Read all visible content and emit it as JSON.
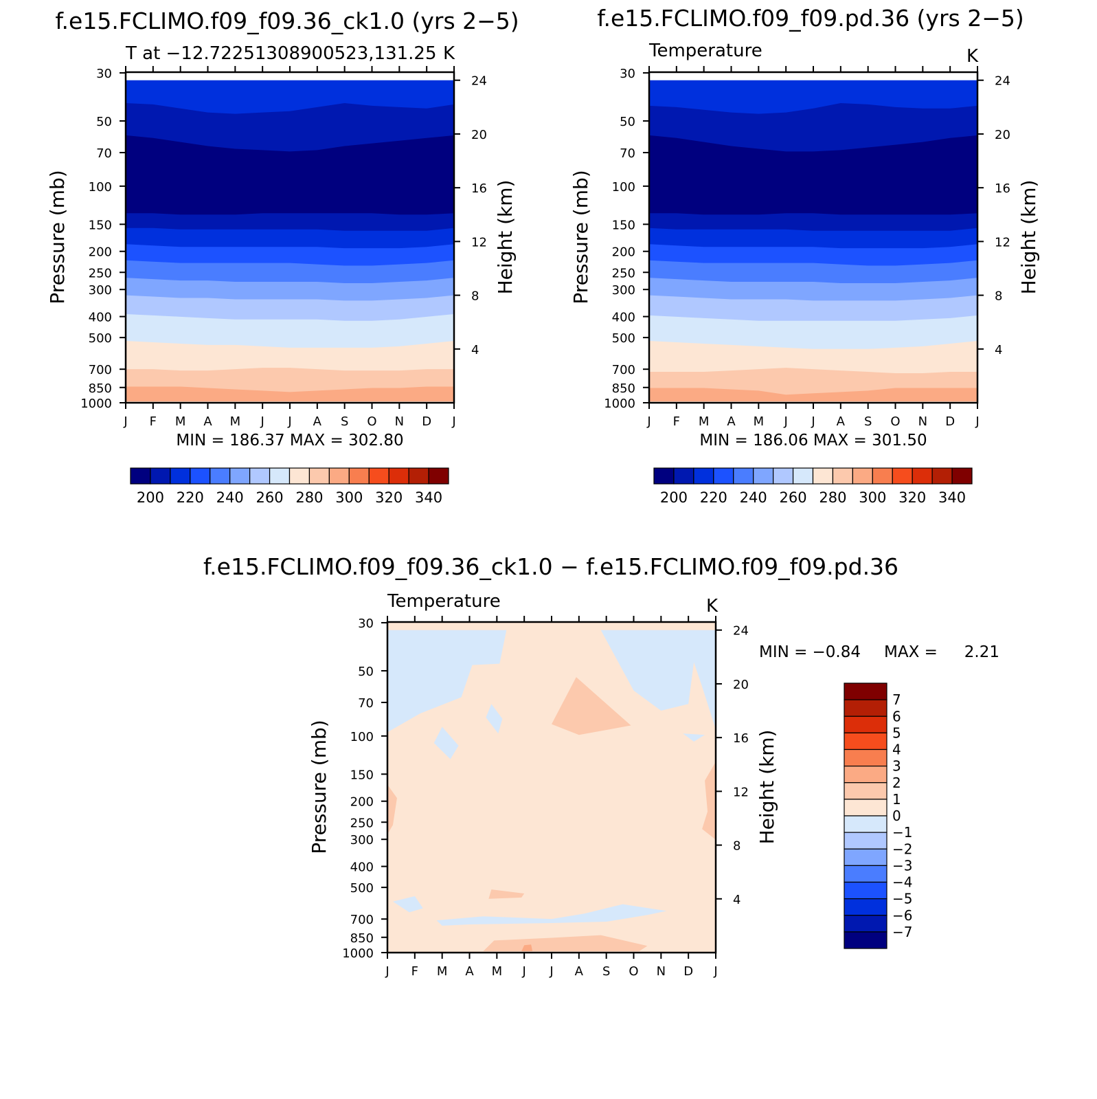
{
  "chart_data": [
    {
      "type": "heatmap",
      "title": "f.e15.FCLIMO.f09_f09.36_ck1.0 (yrs 2−5)",
      "subtitle_left": "T at −12.72251308900523,131.25",
      "subtitle_right": "K",
      "ylabel": "Pressure (mb)",
      "ylabel_right": "Height (km)",
      "x_ticks": [
        "J",
        "F",
        "M",
        "A",
        "M",
        "J",
        "J",
        "A",
        "S",
        "O",
        "N",
        "D",
        "J"
      ],
      "y_ticks": [
        "30",
        "50",
        "70",
        "100",
        "150",
        "200",
        "250",
        "300",
        "400",
        "500",
        "700",
        "850",
        "1000"
      ],
      "y_ticks_right": [
        "24",
        "20",
        "16",
        "12",
        "8",
        "4"
      ],
      "minmax_label": "MIN = 186.37 MAX = 302.80",
      "colorbar_labels": [
        "200",
        "220",
        "240",
        "260",
        "280",
        "300",
        "320",
        "340"
      ],
      "colorbar_colors": [
        "#00007f",
        "#0018b0",
        "#0030dd",
        "#1c52ff",
        "#4a7dff",
        "#7fa6ff",
        "#b0c8ff",
        "#d6e8fb",
        "#fde6d4",
        "#fcc9ad",
        "#fbaa84",
        "#f87e4f",
        "#f64d1d",
        "#dc2e09",
        "#b31f05",
        "#7f0000"
      ],
      "levels": [
        {
          "color": "#0030dd",
          "top": [
            24,
            24,
            24,
            24,
            24,
            24,
            24,
            24,
            24,
            24,
            24,
            24,
            24
          ]
        },
        {
          "color": "#0018b0",
          "top": [
            22.3,
            22.2,
            21.9,
            21.6,
            21.5,
            21.6,
            21.7,
            22.0,
            22.3,
            22.1,
            22.0,
            21.9,
            22.2
          ]
        },
        {
          "color": "#00007f",
          "top": [
            19.9,
            19.7,
            19.4,
            19.1,
            18.9,
            18.8,
            18.7,
            18.8,
            19.1,
            19.3,
            19.5,
            19.7,
            19.9
          ]
        },
        {
          "color": "#0018b0",
          "top": [
            14.1,
            14.1,
            14.0,
            14.0,
            14.0,
            14.1,
            14.1,
            14.1,
            14.1,
            14.1,
            14.0,
            14.0,
            14.1
          ]
        },
        {
          "color": "#0030dd",
          "top": [
            13.0,
            13.0,
            12.9,
            12.9,
            12.9,
            12.9,
            12.9,
            12.9,
            12.8,
            12.8,
            12.8,
            12.8,
            13.0
          ]
        },
        {
          "color": "#1c52ff",
          "top": [
            11.8,
            11.7,
            11.6,
            11.6,
            11.6,
            11.6,
            11.6,
            11.6,
            11.5,
            11.5,
            11.5,
            11.6,
            11.8
          ]
        },
        {
          "color": "#4a7dff",
          "top": [
            10.6,
            10.5,
            10.4,
            10.4,
            10.4,
            10.4,
            10.4,
            10.3,
            10.2,
            10.2,
            10.3,
            10.4,
            10.6
          ]
        },
        {
          "color": "#7fa6ff",
          "top": [
            9.3,
            9.2,
            9.1,
            9.1,
            9.0,
            9.0,
            9.0,
            9.0,
            8.9,
            8.9,
            9.0,
            9.1,
            9.3
          ]
        },
        {
          "color": "#b0c8ff",
          "top": [
            8.0,
            7.9,
            7.8,
            7.8,
            7.7,
            7.7,
            7.7,
            7.7,
            7.6,
            7.6,
            7.7,
            7.8,
            8.0
          ]
        },
        {
          "color": "#d6e8fb",
          "top": [
            6.6,
            6.5,
            6.4,
            6.3,
            6.2,
            6.2,
            6.2,
            6.2,
            6.1,
            6.1,
            6.2,
            6.4,
            6.6
          ]
        },
        {
          "color": "#fde6d4",
          "top": [
            4.6,
            4.5,
            4.4,
            4.3,
            4.3,
            4.2,
            4.1,
            4.1,
            4.1,
            4.1,
            4.2,
            4.4,
            4.6
          ]
        },
        {
          "color": "#fcc9ad",
          "top": [
            2.5,
            2.5,
            2.4,
            2.4,
            2.5,
            2.6,
            2.6,
            2.5,
            2.4,
            2.4,
            2.4,
            2.5,
            2.5
          ]
        },
        {
          "color": "#fbaa84",
          "top": [
            1.2,
            1.2,
            1.2,
            1.1,
            1.0,
            0.9,
            0.8,
            0.9,
            1.0,
            1.1,
            1.1,
            1.2,
            1.2
          ]
        },
        {
          "color": "#fde6d4",
          "top": [
            0.1,
            0.1,
            0.1,
            0.1,
            0.1,
            0.1,
            0.1,
            0.1,
            0.1,
            0.1,
            0.1,
            0.1,
            0.1
          ]
        }
      ]
    },
    {
      "type": "heatmap",
      "title": "f.e15.FCLIMO.f09_f09.pd.36 (yrs 2−5)",
      "subtitle_left": "Temperature",
      "subtitle_right": "K",
      "ylabel": "Pressure (mb)",
      "ylabel_right": "Height (km)",
      "x_ticks": [
        "J",
        "F",
        "M",
        "A",
        "M",
        "J",
        "J",
        "A",
        "S",
        "O",
        "N",
        "D",
        "J"
      ],
      "y_ticks": [
        "30",
        "50",
        "70",
        "100",
        "150",
        "200",
        "250",
        "300",
        "400",
        "500",
        "700",
        "850",
        "1000"
      ],
      "y_ticks_right": [
        "24",
        "20",
        "16",
        "12",
        "8",
        "4"
      ],
      "minmax_label": "MIN = 186.06 MAX = 301.50",
      "colorbar_labels": [
        "200",
        "220",
        "240",
        "260",
        "280",
        "300",
        "320",
        "340"
      ],
      "colorbar_colors": [
        "#00007f",
        "#0018b0",
        "#0030dd",
        "#1c52ff",
        "#4a7dff",
        "#7fa6ff",
        "#b0c8ff",
        "#d6e8fb",
        "#fde6d4",
        "#fcc9ad",
        "#fbaa84",
        "#f87e4f",
        "#f64d1d",
        "#dc2e09",
        "#b31f05",
        "#7f0000"
      ],
      "levels": [
        {
          "color": "#0030dd",
          "top": [
            24,
            24,
            24,
            24,
            24,
            24,
            24,
            24,
            24,
            24,
            24,
            24,
            24
          ]
        },
        {
          "color": "#0018b0",
          "top": [
            22.1,
            22.0,
            21.8,
            21.6,
            21.5,
            21.6,
            21.9,
            22.3,
            22.2,
            22.0,
            21.9,
            21.9,
            22.1
          ]
        },
        {
          "color": "#00007f",
          "top": [
            19.9,
            19.7,
            19.4,
            19.1,
            18.9,
            18.7,
            18.7,
            18.8,
            19.0,
            19.2,
            19.4,
            19.7,
            19.9
          ]
        },
        {
          "color": "#0018b0",
          "top": [
            14.1,
            14.1,
            14.0,
            14.0,
            14.0,
            14.1,
            14.1,
            14.0,
            14.0,
            14.0,
            14.0,
            14.0,
            14.1
          ]
        },
        {
          "color": "#0030dd",
          "top": [
            13.0,
            12.9,
            12.9,
            12.9,
            12.9,
            12.9,
            12.8,
            12.8,
            12.8,
            12.8,
            12.8,
            12.8,
            13.0
          ]
        },
        {
          "color": "#1c52ff",
          "top": [
            11.8,
            11.7,
            11.6,
            11.6,
            11.6,
            11.6,
            11.6,
            11.5,
            11.5,
            11.5,
            11.5,
            11.6,
            11.8
          ]
        },
        {
          "color": "#4a7dff",
          "top": [
            10.6,
            10.5,
            10.4,
            10.4,
            10.4,
            10.4,
            10.4,
            10.3,
            10.2,
            10.2,
            10.3,
            10.4,
            10.6
          ]
        },
        {
          "color": "#7fa6ff",
          "top": [
            9.3,
            9.2,
            9.1,
            9.0,
            9.0,
            9.0,
            9.0,
            8.9,
            8.9,
            8.9,
            9.0,
            9.1,
            9.3
          ]
        },
        {
          "color": "#b0c8ff",
          "top": [
            8.0,
            7.9,
            7.8,
            7.7,
            7.7,
            7.7,
            7.6,
            7.6,
            7.6,
            7.6,
            7.7,
            7.8,
            8.0
          ]
        },
        {
          "color": "#d6e8fb",
          "top": [
            6.5,
            6.4,
            6.3,
            6.2,
            6.1,
            6.1,
            6.1,
            6.1,
            6.1,
            6.1,
            6.2,
            6.3,
            6.5
          ]
        },
        {
          "color": "#fde6d4",
          "top": [
            4.6,
            4.5,
            4.4,
            4.3,
            4.2,
            4.1,
            4.0,
            4.0,
            4.0,
            4.1,
            4.2,
            4.4,
            4.6
          ]
        },
        {
          "color": "#fcc9ad",
          "top": [
            2.3,
            2.3,
            2.3,
            2.4,
            2.5,
            2.6,
            2.5,
            2.4,
            2.3,
            2.2,
            2.2,
            2.3,
            2.3
          ]
        },
        {
          "color": "#fbaa84",
          "top": [
            1.1,
            1.1,
            1.1,
            1.0,
            0.9,
            0.6,
            0.7,
            0.8,
            0.9,
            1.1,
            1.1,
            1.1,
            1.1
          ]
        },
        {
          "color": "#fde6d4",
          "top": [
            0.1,
            0.1,
            0.1,
            0.1,
            0.1,
            0.1,
            0.1,
            0.1,
            0.1,
            0.1,
            0.1,
            0.1,
            0.1
          ]
        }
      ]
    },
    {
      "type": "heatmap",
      "title": "f.e15.FCLIMO.f09_f09.36_ck1.0 − f.e15.FCLIMO.f09_f09.pd.36",
      "subtitle_left": "Temperature",
      "subtitle_right": "K",
      "ylabel": "Pressure (mb)",
      "ylabel_right": "Height (km)",
      "x_ticks": [
        "J",
        "F",
        "M",
        "A",
        "M",
        "J",
        "J",
        "A",
        "S",
        "O",
        "N",
        "D",
        "J"
      ],
      "y_ticks": [
        "30",
        "50",
        "70",
        "100",
        "150",
        "200",
        "250",
        "300",
        "400",
        "500",
        "700",
        "850",
        "1000"
      ],
      "y_ticks_right": [
        "24",
        "20",
        "16",
        "12",
        "8",
        "4"
      ],
      "min_label": "MIN =",
      "min_value": "−0.84",
      "max_label": "MAX =",
      "max_value": "2.21",
      "colorbar_labels": [
        "7",
        "6",
        "5",
        "4",
        "3",
        "2",
        "1",
        "0",
        "−1",
        "−2",
        "−3",
        "−4",
        "−5",
        "−6",
        "−7"
      ],
      "colorbar_colors": [
        "#7f0000",
        "#b31f05",
        "#dc2e09",
        "#f64d1d",
        "#f87e4f",
        "#fbaa84",
        "#fcc9ad",
        "#fde6d4",
        "#d6e8fb",
        "#b0c8ff",
        "#7fa6ff",
        "#4a7dff",
        "#1c52ff",
        "#0030dd",
        "#0018b0",
        "#00007f"
      ],
      "background_color": "#fde6d4",
      "regions": [
        {
          "color": "#d6e8fb",
          "points": [
            [
              0,
              24
            ],
            [
              4.35,
              24
            ],
            [
              4.1,
              21.5
            ],
            [
              3.1,
              21.4
            ],
            [
              2.7,
              19.0
            ],
            [
              1.2,
              17.8
            ],
            [
              0,
              16.4
            ]
          ]
        },
        {
          "color": "#d6e8fb",
          "points": [
            [
              7.8,
              24
            ],
            [
              12,
              24
            ],
            [
              12,
              16.6
            ],
            [
              11.5,
              19.8
            ],
            [
              11.2,
              21.6
            ],
            [
              11.0,
              18.5
            ],
            [
              10.0,
              18.0
            ],
            [
              9.0,
              19.5
            ]
          ]
        },
        {
          "color": "#d6e8fb",
          "points": [
            [
              3.8,
              18.5
            ],
            [
              4.2,
              17.4
            ],
            [
              4.05,
              16.3
            ],
            [
              3.6,
              17.5
            ]
          ]
        },
        {
          "color": "#d6e8fb",
          "points": [
            [
              2.0,
              16.8
            ],
            [
              2.6,
              15.4
            ],
            [
              2.3,
              14.4
            ],
            [
              1.7,
              15.6
            ]
          ]
        },
        {
          "color": "#d6e8fb",
          "points": [
            [
              10.8,
              16.3
            ],
            [
              11.6,
              16.2
            ],
            [
              11.2,
              15.7
            ]
          ]
        },
        {
          "color": "#d6e8fb",
          "points": [
            [
              0.2,
              3.8
            ],
            [
              1.0,
              4.2
            ],
            [
              1.3,
              3.3
            ],
            [
              0.8,
              3.0
            ]
          ]
        },
        {
          "color": "#d6e8fb",
          "points": [
            [
              1.8,
              2.4
            ],
            [
              3.5,
              2.7
            ],
            [
              6.0,
              2.5
            ],
            [
              7.2,
              2.9
            ],
            [
              8.6,
              3.6
            ],
            [
              10.2,
              3.1
            ],
            [
              9.5,
              2.8
            ],
            [
              8.0,
              2.3
            ],
            [
              6.0,
              2.2
            ],
            [
              3.0,
              2.1
            ],
            [
              2.0,
              2.0
            ]
          ]
        },
        {
          "color": "#fcc9ad",
          "points": [
            [
              6.0,
              17.0
            ],
            [
              6.9,
              20.5
            ],
            [
              8.9,
              16.9
            ],
            [
              7.0,
              16.2
            ]
          ]
        },
        {
          "color": "#fcc9ad",
          "points": [
            [
              3.8,
              4.7
            ],
            [
              5.0,
              4.4
            ],
            [
              4.9,
              4.1
            ],
            [
              3.7,
              4.0
            ]
          ]
        },
        {
          "color": "#fcc9ad",
          "points": [
            [
              0,
              12.5
            ],
            [
              0.35,
              11.5
            ],
            [
              0.2,
              9.5
            ],
            [
              0,
              8.8
            ]
          ]
        },
        {
          "color": "#fcc9ad",
          "points": [
            [
              12,
              14.2
            ],
            [
              11.6,
              12.8
            ],
            [
              11.7,
              10.5
            ],
            [
              11.5,
              9.2
            ],
            [
              12,
              8.4
            ]
          ]
        },
        {
          "color": "#fcc9ad",
          "points": [
            [
              3.5,
              0.1
            ],
            [
              3.9,
              0.9
            ],
            [
              6.0,
              1.1
            ],
            [
              7.8,
              1.3
            ],
            [
              9.5,
              0.5
            ],
            [
              9.2,
              0.1
            ]
          ]
        },
        {
          "color": "#fbaa84",
          "points": [
            [
              4.9,
              0.1
            ],
            [
              5.0,
              0.55
            ],
            [
              5.25,
              0.6
            ],
            [
              5.3,
              0.1
            ]
          ]
        }
      ]
    }
  ]
}
